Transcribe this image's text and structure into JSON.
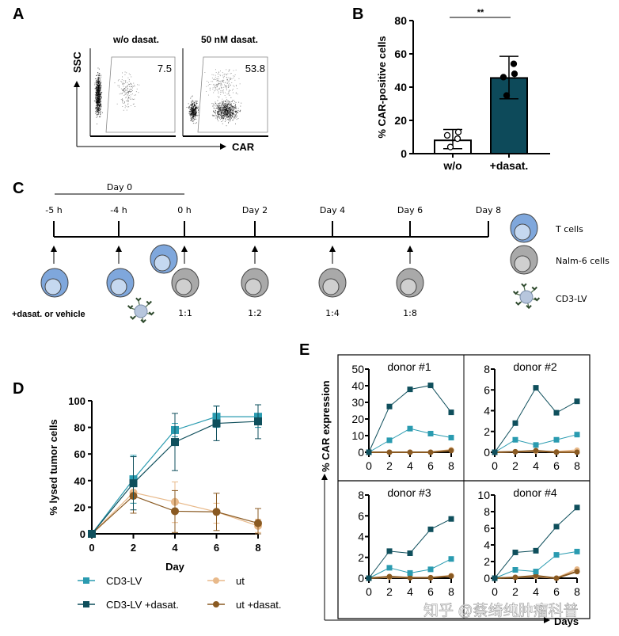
{
  "figure": {
    "panels": {
      "A": {
        "letter": "A",
        "plots": [
          {
            "title": "w/o dasat.",
            "gate_value": "7.5"
          },
          {
            "title": "50 nM dasat.",
            "gate_value": "53.8"
          }
        ],
        "y_axis_label": "SSC",
        "x_axis_label": "CAR"
      },
      "B": {
        "letter": "B"
      },
      "C": {
        "letter": "C",
        "bracket_label": "Day 0",
        "timepoints": [
          "-5 h",
          "-4 h",
          "0 h",
          "Day 2",
          "Day 4",
          "Day 6",
          "Day 8"
        ],
        "ratios": [
          "1:1",
          "1:2",
          "1:4",
          "1:8"
        ],
        "treatment_label": "+dasat. or vehicle",
        "legend": [
          {
            "icon": "t-cell-icon",
            "label": "T cells"
          },
          {
            "icon": "nalm6-cell-icon",
            "label": "Nalm-6 cells"
          },
          {
            "icon": "cd3-lv-virus-icon",
            "label": "CD3-LV"
          }
        ]
      },
      "D": {
        "letter": "D"
      },
      "E": {
        "letter": "E",
        "y_axis_label": "% CAR expression",
        "x_axis_label": "Days"
      }
    },
    "colors": {
      "cd3lv": "#2a9bb0",
      "cd3lv_dasat": "#0f4f5c",
      "ut": "#e8b98a",
      "ut_dasat": "#8a5a22",
      "bar_dasat": "#0d4a5a"
    },
    "watermark": "知乎 @蔡绮纯肿瘤科普"
  },
  "chart_data": [
    {
      "id": "B",
      "type": "bar",
      "title": "",
      "xlabel": "",
      "ylabel": "% CAR-positive cells",
      "categories": [
        "w/o",
        "+dasat."
      ],
      "values": [
        8,
        45.5
      ],
      "error": [
        [
          3,
          14.5
        ],
        [
          33,
          58.5
        ]
      ],
      "points": [
        [
          4,
          11,
          13,
          9
        ],
        [
          35,
          46,
          48,
          54
        ]
      ],
      "ylim": [
        0,
        80
      ],
      "yticks": [
        0,
        20,
        40,
        60,
        80
      ],
      "significance": "**"
    },
    {
      "id": "D",
      "type": "line",
      "title": "",
      "xlabel": "Day",
      "ylabel": "% lysed tumor cells",
      "x": [
        0,
        2,
        4,
        6,
        8
      ],
      "xlim": [
        0,
        8
      ],
      "ylim": [
        0,
        100
      ],
      "yticks": [
        0,
        20,
        40,
        60,
        80,
        100
      ],
      "legend_position": "bottom",
      "series": [
        {
          "name": "CD3-LV",
          "marker": "square",
          "color_key": "cd3lv",
          "values": [
            0,
            41,
            78,
            88,
            88
          ],
          "err_low": [
            0,
            23,
            73,
            80,
            80
          ],
          "err_high": [
            0,
            59,
            83,
            96,
            97
          ]
        },
        {
          "name": "CD3-LV +dasat.",
          "marker": "square",
          "color_key": "cd3lv_dasat",
          "values": [
            0,
            38,
            69,
            83,
            84.5
          ],
          "err_low": [
            0,
            18,
            47.5,
            70,
            71.5
          ],
          "err_high": [
            0,
            58,
            90.5,
            96,
            97
          ]
        },
        {
          "name": "ut",
          "marker": "circle",
          "color_key": "ut",
          "values": [
            0,
            31,
            24,
            16.5,
            6
          ],
          "err_low": [
            0,
            23,
            8.5,
            8,
            1
          ],
          "err_high": [
            0,
            39,
            39,
            23,
            11
          ]
        },
        {
          "name": "ut +dasat.",
          "marker": "circle",
          "color_key": "ut_dasat",
          "values": [
            0,
            28.5,
            17,
            16.5,
            8
          ],
          "err_low": [
            0,
            15.5,
            1,
            2.5,
            0
          ],
          "err_high": [
            0,
            41.5,
            32.5,
            30.5,
            19
          ]
        }
      ]
    },
    {
      "id": "E",
      "type": "line",
      "title": "",
      "xlabel": "Days",
      "ylabel": "% CAR expression",
      "x": [
        0,
        2,
        4,
        6,
        8
      ],
      "panels": [
        {
          "title": "donor #1",
          "ylim": [
            0,
            50
          ],
          "yticks": [
            0,
            10,
            20,
            30,
            40,
            50
          ],
          "series": {
            "cd3lv": [
              0,
              7.2,
              14.2,
              11.2,
              8.8
            ],
            "cd3lv_dasat": [
              0,
              27.5,
              37.8,
              40.2,
              24
            ],
            "ut": [
              0,
              0,
              0,
              0,
              1.5
            ],
            "ut_dasat": [
              0,
              0,
              0,
              0,
              1
            ]
          }
        },
        {
          "title": "donor #2",
          "ylim": [
            0,
            8
          ],
          "yticks": [
            0,
            2,
            4,
            6,
            8
          ],
          "series": {
            "cd3lv": [
              0,
              1.2,
              0.7,
              1.2,
              1.7
            ],
            "cd3lv_dasat": [
              0,
              2.8,
              6.2,
              3.8,
              4.9
            ],
            "ut": [
              0,
              0.05,
              0.1,
              0.05,
              0.2
            ],
            "ut_dasat": [
              0,
              0.05,
              0.15,
              0,
              0
            ]
          }
        },
        {
          "title": "donor #3",
          "ylim": [
            0,
            8
          ],
          "yticks": [
            0,
            2,
            4,
            6,
            8
          ],
          "series": {
            "cd3lv": [
              0,
              1.0,
              0.5,
              0.85,
              1.85
            ],
            "cd3lv_dasat": [
              0,
              2.6,
              2.4,
              4.7,
              5.7
            ],
            "ut": [
              0,
              0.1,
              0.05,
              0.05,
              0.25
            ],
            "ut_dasat": [
              0,
              0.15,
              0.05,
              0.05,
              0.2
            ]
          }
        },
        {
          "title": "donor #4",
          "ylim": [
            0,
            10
          ],
          "yticks": [
            0,
            2,
            4,
            6,
            8,
            10
          ],
          "series": {
            "cd3lv": [
              0,
              1.0,
              0.8,
              2.8,
              3.2
            ],
            "cd3lv_dasat": [
              0,
              3.1,
              3.3,
              6.2,
              8.5
            ],
            "ut": [
              0,
              0.1,
              0.2,
              0,
              1.1
            ],
            "ut_dasat": [
              0,
              0.1,
              0.3,
              0,
              0.8
            ]
          }
        }
      ]
    }
  ]
}
